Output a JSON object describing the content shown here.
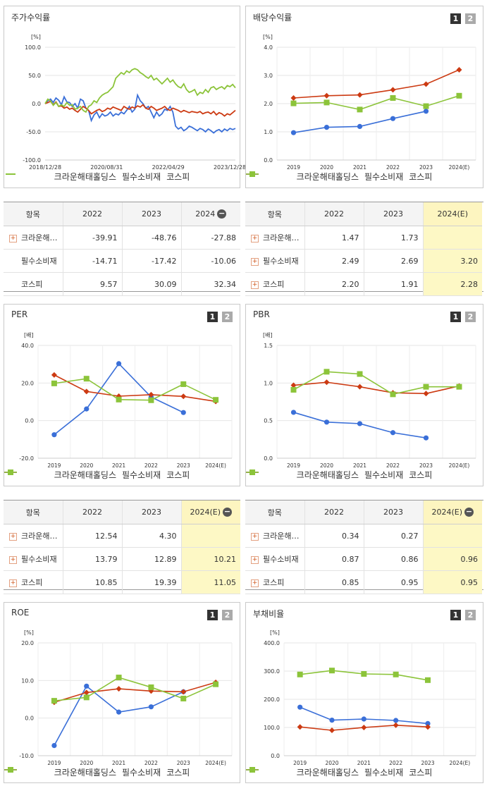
{
  "colors": {
    "kraun": "#3a6fd8",
    "consumer": "#cc3a12",
    "kospi": "#8cc43a"
  },
  "legend": [
    "크라운해태홀딩스",
    "필수소비재",
    "코스피"
  ],
  "buttons": {
    "one": "1",
    "two": "2"
  },
  "charts": [
    {
      "key": "stock",
      "title": "주가수익률",
      "show_buttons": false,
      "chart_data": {
        "type": "line",
        "unit_label": "[%]",
        "ylim": [
          -100,
          100
        ],
        "yticks": [
          "100.0",
          "50.0",
          "0.0",
          "-50.0",
          "-100.0"
        ],
        "xticks": [
          "2018/12/28",
          "2020/08/31",
          "2022/04/29",
          "2023/12/28"
        ],
        "marker": "none",
        "series": [
          {
            "name": "크라운해태홀딩스",
            "values": [
              0,
              5,
              8,
              2,
              10,
              6,
              -2,
              12,
              3,
              2,
              -5,
              0,
              -8,
              8,
              5,
              -8,
              -12,
              -30,
              -20,
              -15,
              -25,
              -18,
              -22,
              -20,
              -15,
              -22,
              -18,
              -20,
              -15,
              -18,
              -12,
              -5,
              -15,
              -10,
              15,
              5,
              0,
              -8,
              -5,
              -15,
              -25,
              -15,
              -22,
              -18,
              -10,
              -12,
              -5,
              -15,
              -40,
              -45,
              -42,
              -48,
              -45,
              -40,
              -42,
              -45,
              -48,
              -44,
              -46,
              -50,
              -45,
              -48,
              -52,
              -48,
              -46,
              -50,
              -45,
              -48,
              -44,
              -46,
              -44
            ]
          },
          {
            "name": "필수소비재",
            "values": [
              0,
              2,
              4,
              -2,
              3,
              -5,
              -4,
              -8,
              -6,
              -10,
              -8,
              -12,
              -15,
              -10,
              -5,
              -8,
              -12,
              -18,
              -15,
              -12,
              -10,
              -14,
              -12,
              -8,
              -10,
              -6,
              -8,
              -10,
              -12,
              -5,
              -8,
              -10,
              -6,
              -8,
              -4,
              -6,
              -2,
              -8,
              -10,
              -5,
              -8,
              -12,
              -10,
              -8,
              -5,
              -10,
              -12,
              -8,
              -10,
              -12,
              -15,
              -12,
              -14,
              -16,
              -14,
              -15,
              -16,
              -14,
              -18,
              -16,
              -15,
              -18,
              -14,
              -20,
              -16,
              -18,
              -22,
              -18,
              -20,
              -16,
              -12
            ]
          },
          {
            "name": "코스피",
            "values": [
              0,
              8,
              5,
              -3,
              2,
              -5,
              -2,
              -5,
              2,
              -3,
              -2,
              -10,
              -8,
              -5,
              -12,
              -15,
              -5,
              -2,
              5,
              2,
              10,
              15,
              18,
              20,
              25,
              30,
              45,
              50,
              55,
              52,
              58,
              55,
              60,
              62,
              60,
              55,
              52,
              48,
              45,
              50,
              42,
              45,
              40,
              35,
              40,
              45,
              38,
              42,
              35,
              30,
              28,
              35,
              25,
              20,
              22,
              25,
              15,
              20,
              18,
              25,
              20,
              28,
              30,
              25,
              28,
              30,
              26,
              32,
              30,
              34,
              28
            ]
          }
        ]
      },
      "table": {
        "headers": [
          "항목",
          "2022",
          "2023",
          "2024"
        ],
        "has_minus": true,
        "rows": [
          {
            "plus": true,
            "label": "크라운해…",
            "values": [
              "-39.91",
              "-48.76",
              "-27.88"
            ]
          },
          {
            "plus": false,
            "label": "필수소비재",
            "values": [
              "-14.71",
              "-17.42",
              "-10.06"
            ]
          },
          {
            "plus": false,
            "label": "코스피",
            "values": [
              "9.57",
              "30.09",
              "32.34"
            ]
          }
        ],
        "highlight_last": false
      }
    },
    {
      "key": "dividend",
      "title": "배당수익률",
      "show_buttons": true,
      "chart_data": {
        "type": "line",
        "unit_label": "[%]",
        "ylim": [
          0,
          4
        ],
        "yticks": [
          "4.0",
          "3.0",
          "2.0",
          "1.0",
          "0.0"
        ],
        "categories": [
          "2019",
          "2020",
          "2021",
          "2022",
          "2023",
          "2024(E)"
        ],
        "series": [
          {
            "name": "크라운해태홀딩스",
            "values": [
              0.97,
              1.16,
              1.19,
              1.47,
              1.73,
              null
            ]
          },
          {
            "name": "필수소비재",
            "values": [
              2.2,
              2.28,
              2.31,
              2.49,
              2.69,
              3.2
            ]
          },
          {
            "name": "코스피",
            "values": [
              2.01,
              2.04,
              1.79,
              2.2,
              1.91,
              2.28
            ]
          }
        ]
      },
      "table": {
        "headers": [
          "항목",
          "2022",
          "2023",
          "2024(E)"
        ],
        "has_minus": false,
        "rows": [
          {
            "plus": true,
            "label": "크라운해…",
            "values": [
              "1.47",
              "1.73",
              ""
            ]
          },
          {
            "plus": true,
            "label": "필수소비재",
            "values": [
              "2.49",
              "2.69",
              "3.20"
            ]
          },
          {
            "plus": true,
            "label": "코스피",
            "values": [
              "2.20",
              "1.91",
              "2.28"
            ]
          }
        ],
        "highlight_last": true
      }
    },
    {
      "key": "per",
      "title": "PER",
      "show_buttons": true,
      "chart_data": {
        "type": "line",
        "unit_label": "[배]",
        "ylim": [
          -20,
          40
        ],
        "yticks": [
          "40.0",
          "20.0",
          "0.0",
          "-20.0"
        ],
        "categories": [
          "2019",
          "2020",
          "2021",
          "2022",
          "2023",
          "2024(E)"
        ],
        "series": [
          {
            "name": "크라운해태홀딩스",
            "values": [
              -7.5,
              6.2,
              30.3,
              12.54,
              4.3,
              null
            ]
          },
          {
            "name": "필수소비재",
            "values": [
              24.3,
              15.5,
              13.0,
              13.79,
              12.89,
              10.21
            ]
          },
          {
            "name": "코스피",
            "values": [
              19.8,
              22.3,
              11.2,
              10.85,
              19.39,
              11.05
            ]
          }
        ]
      },
      "table": {
        "headers": [
          "항목",
          "2022",
          "2023",
          "2024(E)"
        ],
        "has_minus": true,
        "rows": [
          {
            "plus": true,
            "label": "크라운해…",
            "values": [
              "12.54",
              "4.30",
              ""
            ]
          },
          {
            "plus": true,
            "label": "필수소비재",
            "values": [
              "13.79",
              "12.89",
              "10.21"
            ]
          },
          {
            "plus": true,
            "label": "코스피",
            "values": [
              "10.85",
              "19.39",
              "11.05"
            ]
          }
        ],
        "highlight_last": true
      }
    },
    {
      "key": "pbr",
      "title": "PBR",
      "show_buttons": true,
      "chart_data": {
        "type": "line",
        "unit_label": "[배]",
        "ylim": [
          0,
          1.5
        ],
        "yticks": [
          "1.5",
          "1.0",
          "0.5",
          "0.0"
        ],
        "categories": [
          "2019",
          "2020",
          "2021",
          "2022",
          "2023",
          "2024(E)"
        ],
        "series": [
          {
            "name": "크라운해태홀딩스",
            "values": [
              0.61,
              0.48,
              0.46,
              0.34,
              0.27,
              null
            ]
          },
          {
            "name": "필수소비재",
            "values": [
              0.97,
              1.01,
              0.95,
              0.87,
              0.86,
              0.96
            ]
          },
          {
            "name": "코스피",
            "values": [
              0.91,
              1.15,
              1.12,
              0.85,
              0.95,
              0.95
            ]
          }
        ]
      },
      "table": {
        "headers": [
          "항목",
          "2022",
          "2023",
          "2024(E)"
        ],
        "has_minus": true,
        "rows": [
          {
            "plus": true,
            "label": "크라운해…",
            "values": [
              "0.34",
              "0.27",
              ""
            ]
          },
          {
            "plus": true,
            "label": "필수소비재",
            "values": [
              "0.87",
              "0.86",
              "0.96"
            ]
          },
          {
            "plus": true,
            "label": "코스피",
            "values": [
              "0.85",
              "0.95",
              "0.95"
            ]
          }
        ],
        "highlight_last": true
      }
    },
    {
      "key": "roe",
      "title": "ROE",
      "show_buttons": true,
      "chart_data": {
        "type": "line",
        "unit_label": "[%]",
        "ylim": [
          -10,
          20
        ],
        "yticks": [
          "20.0",
          "10.0",
          "0.0",
          "-10.0"
        ],
        "categories": [
          "2019",
          "2020",
          "2021",
          "2022",
          "2023",
          "2024(E)"
        ],
        "series": [
          {
            "name": "크라운해태홀딩스",
            "values": [
              -7.3,
              8.5,
              1.6,
              3.0,
              7.0,
              null
            ]
          },
          {
            "name": "필수소비재",
            "values": [
              4.2,
              6.8,
              7.8,
              7.2,
              7.0,
              9.5
            ]
          },
          {
            "name": "코스피",
            "values": [
              4.6,
              5.5,
              10.8,
              8.2,
              5.2,
              9.0
            ]
          }
        ]
      }
    },
    {
      "key": "debt",
      "title": "부채비율",
      "show_buttons": true,
      "chart_data": {
        "type": "line",
        "unit_label": "[%]",
        "ylim": [
          0,
          400
        ],
        "yticks": [
          "400.0",
          "300.0",
          "200.0",
          "100.0",
          "0.0"
        ],
        "categories": [
          "2019",
          "2020",
          "2021",
          "2022",
          "2023",
          "2024(E)"
        ],
        "series": [
          {
            "name": "크라운해태홀딩스",
            "values": [
              172,
              126,
              130,
              125,
              114,
              null
            ]
          },
          {
            "name": "필수소비재",
            "values": [
              102,
              90,
              100,
              108,
              102,
              null
            ]
          },
          {
            "name": "코스피",
            "values": [
              288,
              302,
              290,
              288,
              268,
              null
            ]
          }
        ]
      }
    }
  ]
}
